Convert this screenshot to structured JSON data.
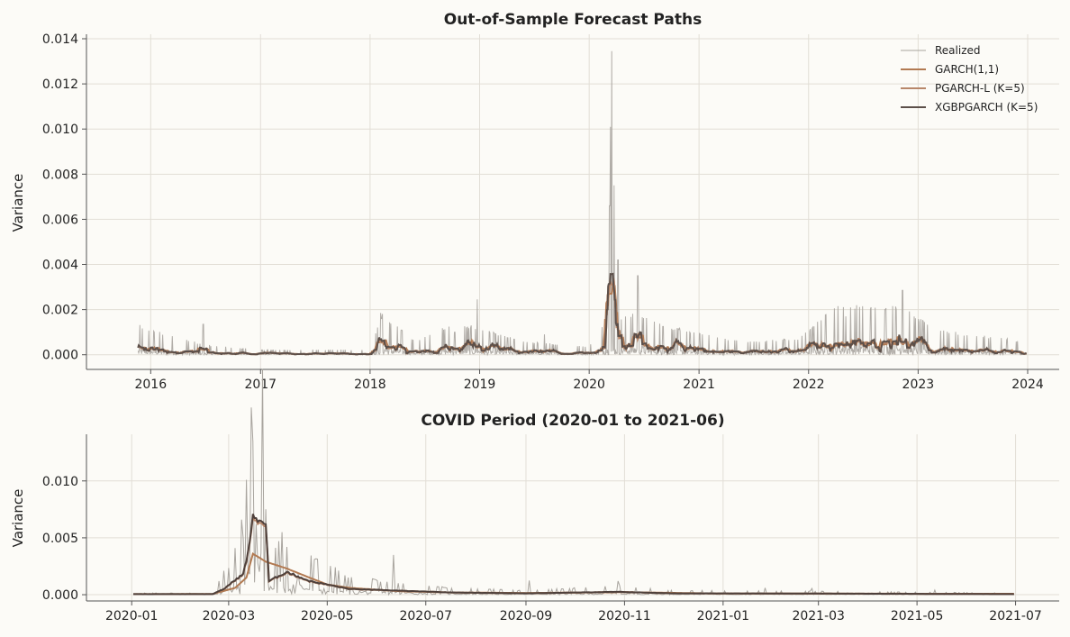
{
  "chart_data": [
    {
      "type": "line",
      "title": "Out-of-Sample Forecast Paths",
      "xlabel": "",
      "ylabel": "Variance",
      "x_ticks": [
        "2016",
        "2017",
        "2018",
        "2019",
        "2020",
        "2021",
        "2022",
        "2023",
        "2024"
      ],
      "y_ticks": [
        "0.000",
        "0.002",
        "0.004",
        "0.006",
        "0.008",
        "0.010",
        "0.012",
        "0.014"
      ],
      "xlim": [
        "2015-06-01",
        "2024-04-15"
      ],
      "ylim": [
        -0.00065,
        0.0142
      ],
      "grid": true,
      "legend_position": "top-right",
      "x_date_range": [
        "2015-11-20",
        "2023-12-29"
      ],
      "series": [
        {
          "name": "Realized",
          "color": "#a8a49e",
          "width": 1
        },
        {
          "name": "GARCH(1,1)",
          "color": "#b27a52",
          "width": 2
        },
        {
          "name": "PGARCH-L (K=5)",
          "color": "#b8876a",
          "width": 2
        },
        {
          "name": "XGBPGARCH (K=5)",
          "color": "#5c4f49",
          "width": 2
        }
      ],
      "realized_spikes": [
        [
          "2016-06-24",
          0.00135
        ],
        [
          "2018-02-05",
          0.00185
        ],
        [
          "2018-02-08",
          0.0016
        ],
        [
          "2018-10-10",
          0.001
        ],
        [
          "2018-12-24",
          0.00245
        ],
        [
          "2019-08-05",
          0.0009
        ],
        [
          "2020-02-27",
          0.0021
        ],
        [
          "2020-03-09",
          0.0066
        ],
        [
          "2020-03-12",
          0.0101
        ],
        [
          "2020-03-16",
          0.01345
        ],
        [
          "2020-03-24",
          0.0075
        ],
        [
          "2020-04-06",
          0.0042
        ],
        [
          "2020-06-11",
          0.0035
        ],
        [
          "2020-09-03",
          0.00125
        ],
        [
          "2020-10-28",
          0.0012
        ],
        [
          "2022-05-05",
          0.0017
        ],
        [
          "2022-09-13",
          0.002
        ],
        [
          "2022-11-10",
          0.00285
        ]
      ]
    },
    {
      "type": "line",
      "title": "COVID Period (2020-01 to 2021-06)",
      "xlabel": "",
      "ylabel": "Variance",
      "x_ticks": [
        "2020-01",
        "2020-03",
        "2020-05",
        "2020-07",
        "2020-09",
        "2020-11",
        "2021-01",
        "2021-03",
        "2021-05",
        "2021-07"
      ],
      "y_ticks": [
        "0.000",
        "0.005",
        "0.010"
      ],
      "xlim": [
        "2019-12-04",
        "2021-07-28"
      ],
      "ylim": [
        -0.00055,
        0.0141
      ],
      "grid": true,
      "x_date_range": [
        "2020-01-02",
        "2021-06-30"
      ],
      "series": [
        {
          "name": "Realized",
          "color": "#a8a49e",
          "width": 1
        },
        {
          "name": "GARCH(1,1)",
          "color": "#b27a52",
          "width": 2
        },
        {
          "name": "PGARCH-L (K=5)",
          "color": "#b8876a",
          "width": 2
        },
        {
          "name": "XGBPGARCH (K=5)",
          "color": "#4e403b",
          "width": 2
        }
      ],
      "realized_spikes": [
        [
          "2020-02-24",
          0.0012
        ],
        [
          "2020-02-27",
          0.0021
        ],
        [
          "2020-03-05",
          0.0022
        ],
        [
          "2020-03-09",
          0.0066
        ],
        [
          "2020-03-12",
          0.0101
        ],
        [
          "2020-03-16",
          0.01345
        ],
        [
          "2020-03-18",
          0.0062
        ],
        [
          "2020-03-24",
          0.0075
        ],
        [
          "2020-04-06",
          0.0042
        ],
        [
          "2020-04-13",
          0.0018
        ],
        [
          "2020-06-11",
          0.0035
        ],
        [
          "2020-09-03",
          0.00125
        ],
        [
          "2020-10-28",
          0.0012
        ],
        [
          "2021-01-27",
          0.0006
        ],
        [
          "2021-02-25",
          0.00055
        ],
        [
          "2021-05-12",
          0.0004
        ]
      ],
      "forecast_points": [
        [
          "2020-01-02",
          5e-05
        ],
        [
          "2020-02-20",
          5e-05
        ],
        [
          "2020-02-27",
          0.0005
        ],
        [
          "2020-03-05",
          0.0013
        ],
        [
          "2020-03-10",
          0.0018
        ],
        [
          "2020-03-13",
          0.0037
        ],
        [
          "2020-03-16",
          0.0068
        ],
        [
          "2020-03-20",
          0.0066
        ],
        [
          "2020-03-24",
          0.0062
        ],
        [
          "2020-03-26",
          0.0012
        ],
        [
          "2020-04-06",
          0.002
        ],
        [
          "2020-04-20",
          0.0012
        ],
        [
          "2020-05-15",
          0.0005
        ],
        [
          "2020-06-15",
          0.00035
        ],
        [
          "2020-07-15",
          0.0002
        ],
        [
          "2020-09-01",
          0.00012
        ],
        [
          "2020-10-28",
          0.00025
        ],
        [
          "2020-12-01",
          0.00012
        ],
        [
          "2021-03-01",
          0.0001
        ],
        [
          "2021-06-30",
          5e-05
        ]
      ],
      "garch_points": [
        [
          "2020-01-02",
          5e-05
        ],
        [
          "2020-02-20",
          6e-05
        ],
        [
          "2020-03-05",
          0.0006
        ],
        [
          "2020-03-12",
          0.0015
        ],
        [
          "2020-03-16",
          0.0036
        ],
        [
          "2020-03-24",
          0.0029
        ],
        [
          "2020-04-06",
          0.0023
        ],
        [
          "2020-04-20",
          0.0015
        ],
        [
          "2020-05-01",
          0.0009
        ],
        [
          "2020-05-15",
          0.0006
        ],
        [
          "2020-06-15",
          0.0003
        ],
        [
          "2020-07-15",
          0.0002
        ],
        [
          "2020-09-01",
          0.00015
        ],
        [
          "2020-11-01",
          0.00022
        ],
        [
          "2021-01-01",
          0.0001
        ],
        [
          "2021-06-30",
          8e-05
        ]
      ]
    }
  ]
}
